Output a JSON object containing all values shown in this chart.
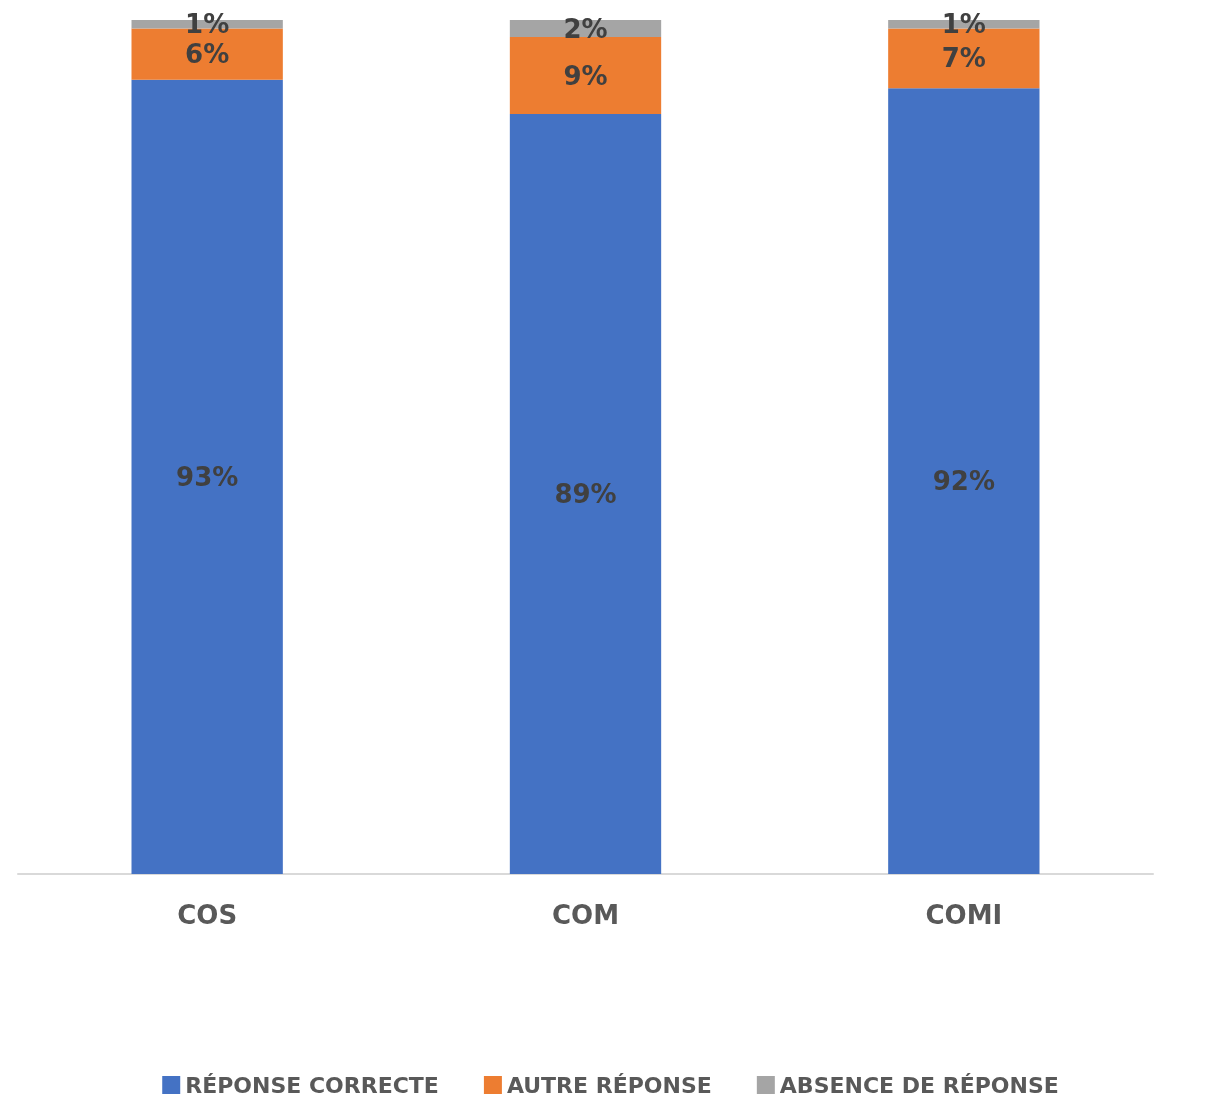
{
  "chart_data": {
    "type": "bar",
    "stacked": true,
    "categories": [
      "COS",
      "COM",
      "COMI"
    ],
    "series": [
      {
        "name": "RÉPONSE CORRECTE",
        "color": "#4472c4",
        "values": [
          93,
          89,
          92
        ],
        "value_labels": [
          "93%",
          "89%",
          "92%"
        ]
      },
      {
        "name": "AUTRE RÉPONSE",
        "color": "#ed7d31",
        "values": [
          6,
          9,
          7
        ],
        "value_labels": [
          "6%",
          "9%",
          "7%"
        ]
      },
      {
        "name": "ABSENCE DE RÉPONSE",
        "color": "#a5a5a5",
        "values": [
          1,
          2,
          1
        ],
        "value_labels": [
          "1%",
          "2%",
          "1%"
        ]
      }
    ],
    "tick_labels": "x",
    "grid": false,
    "legend": "bottom"
  }
}
